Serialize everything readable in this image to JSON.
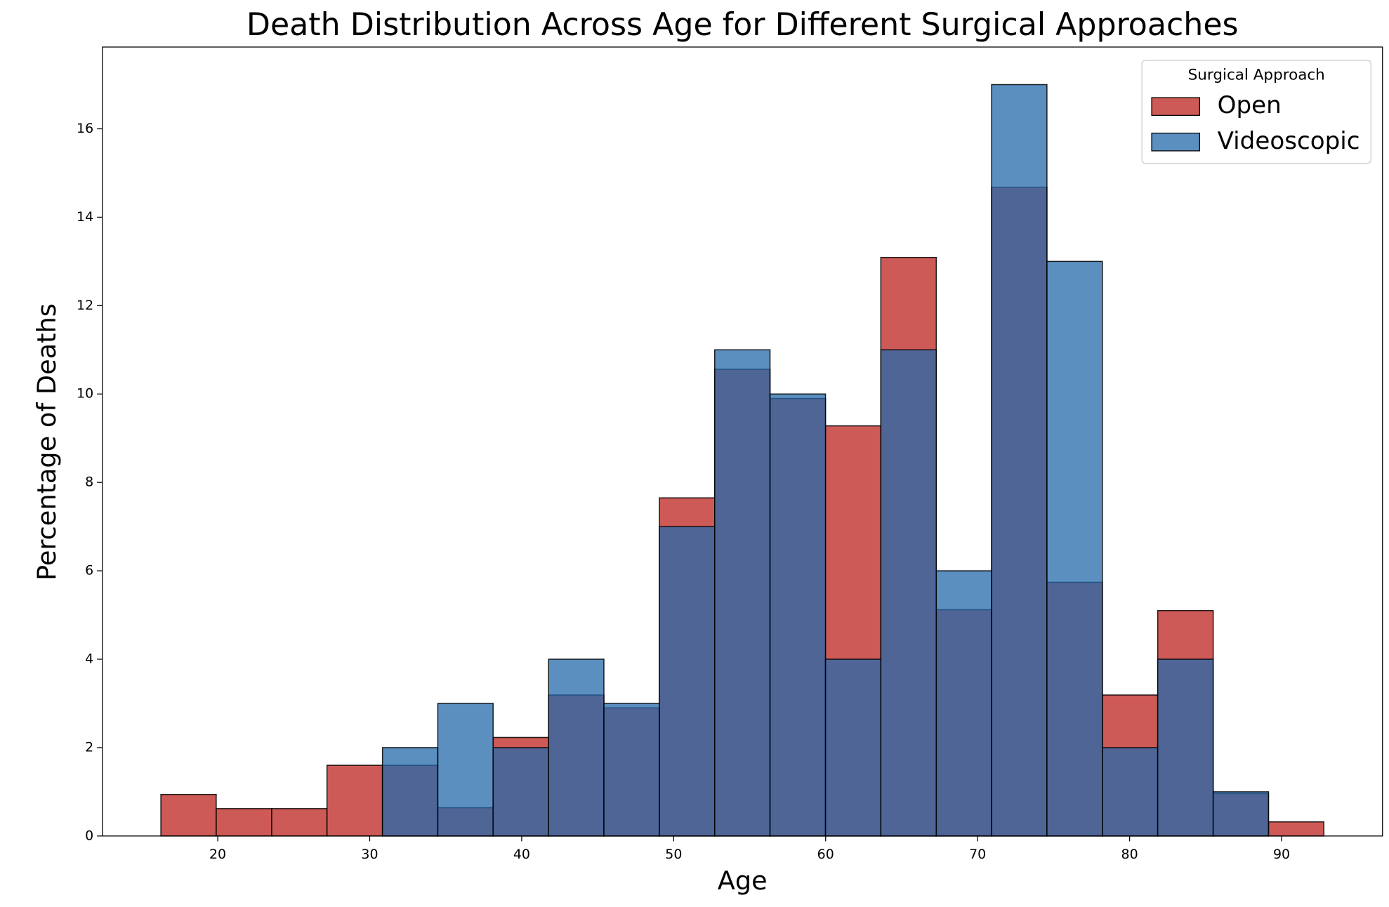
{
  "chart_data": {
    "type": "histogram",
    "title": "Death Distribution Across Age for Different Surgical Approaches",
    "x_label": "Age",
    "y_label": "Percentage of Deaths",
    "bins": [
      16.26,
      19.9,
      23.55,
      27.19,
      30.84,
      34.48,
      38.12,
      41.77,
      45.41,
      49.06,
      52.7,
      56.34,
      59.99,
      63.63,
      67.28,
      70.92,
      74.56,
      78.21,
      81.85,
      85.5,
      89.14,
      92.78
    ],
    "series": [
      {
        "name": "Open",
        "color": "#c0312d",
        "opacity": 0.8,
        "values": [
          0.94,
          0.62,
          0.62,
          1.6,
          1.6,
          0.64,
          2.23,
          3.19,
          2.9,
          7.65,
          10.56,
          9.9,
          9.28,
          13.09,
          5.12,
          14.68,
          5.74,
          3.19,
          5.1,
          0.96,
          0.32
        ]
      },
      {
        "name": "Videoscopic",
        "color": "#246aab",
        "opacity": 0.75,
        "values": [
          0,
          0,
          0,
          0,
          2,
          3,
          2,
          4,
          3,
          7,
          11,
          10,
          4,
          11,
          6,
          17,
          13,
          2,
          4,
          1,
          0
        ]
      }
    ],
    "legend_title": "Surgical Approach",
    "legend": "upper right",
    "xlim": [
      12.41,
      96.64
    ],
    "ylim": [
      0,
      17.85
    ],
    "xticks": [
      20,
      30,
      40,
      50,
      60,
      70,
      80,
      90
    ],
    "yticks": [
      0,
      2,
      4,
      6,
      8,
      10,
      12,
      14,
      16
    ]
  }
}
